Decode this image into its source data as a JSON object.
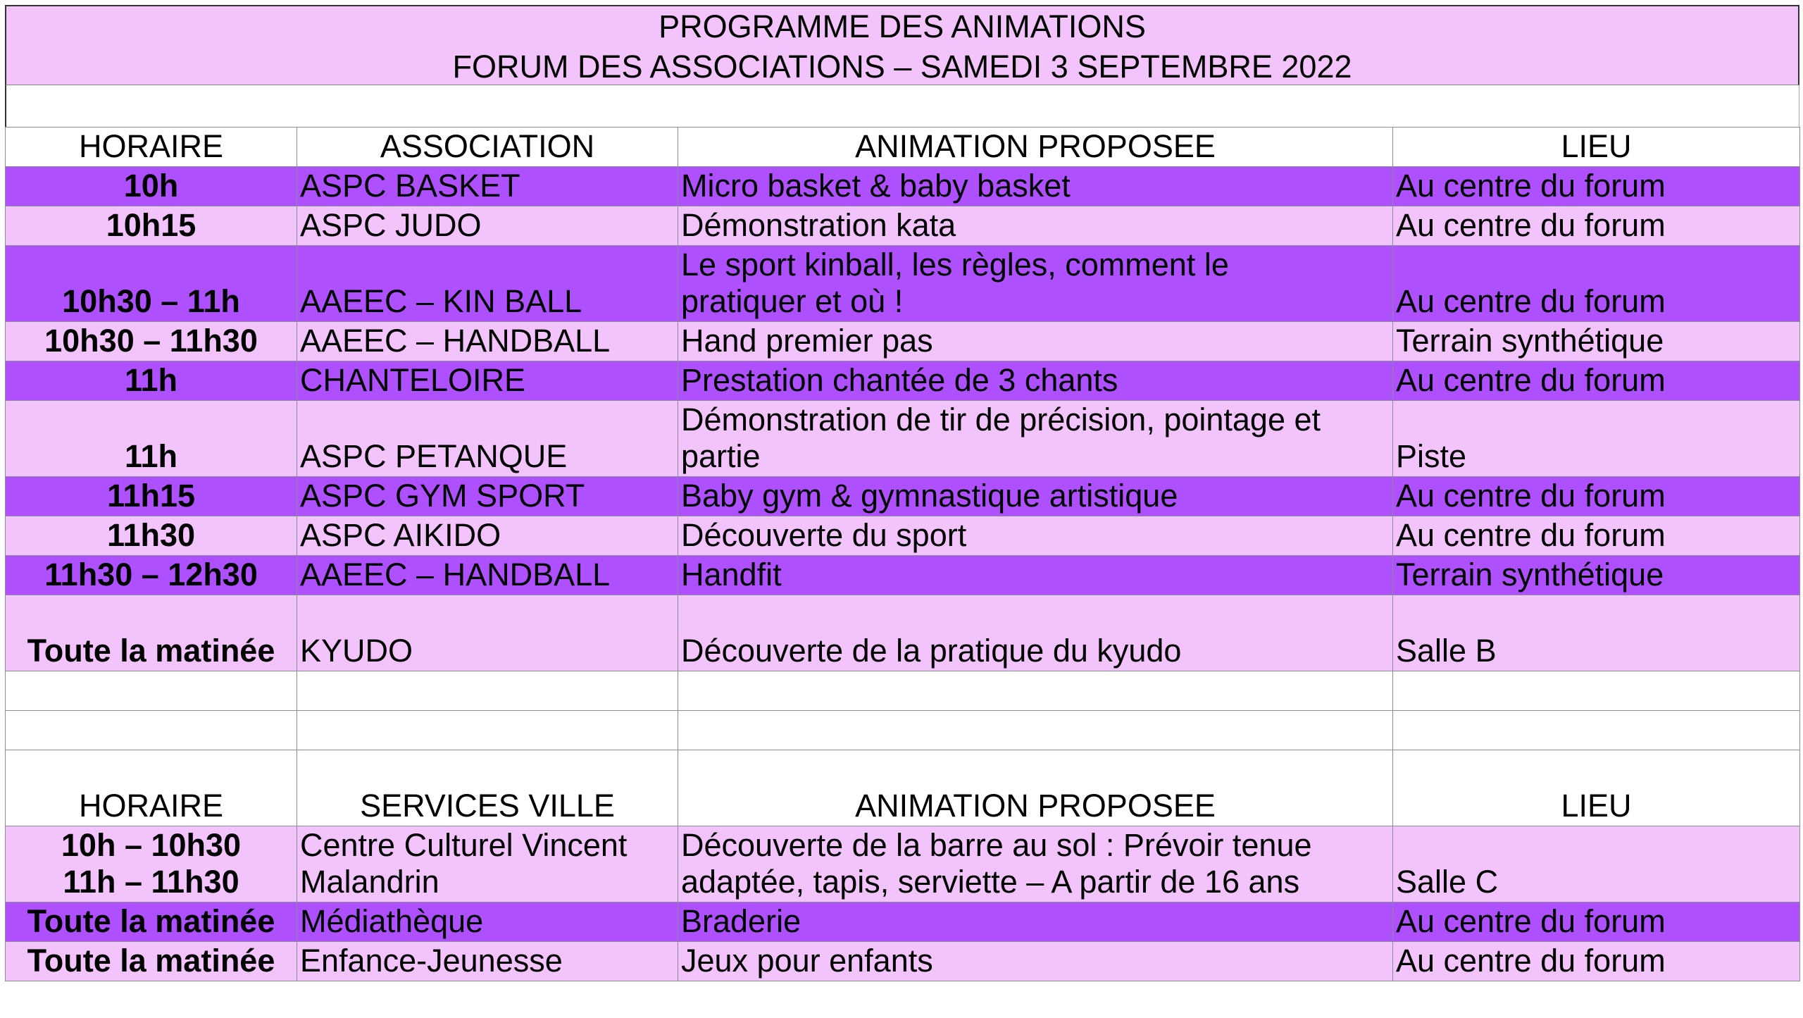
{
  "title": {
    "line1": "PROGRAMME DES ANIMATIONS",
    "line2": "FORUM DES ASSOCIATIONS – SAMEDI 3 SEPTEMBRE 2022"
  },
  "colors": {
    "dark_row": "#af50ff",
    "light_row": "#f3c3fb"
  },
  "associations": {
    "headers": [
      "HORAIRE",
      "ASSOCIATION",
      "ANIMATION PROPOSEE",
      "LIEU"
    ],
    "rows": [
      {
        "style": "dark",
        "lines": 1,
        "cells": [
          "10h",
          "ASPC BASKET",
          "Micro basket & baby basket",
          "Au centre du forum"
        ]
      },
      {
        "style": "light",
        "lines": 1,
        "cells": [
          "10h15",
          "ASPC JUDO",
          "Démonstration kata",
          "Au centre du forum"
        ]
      },
      {
        "style": "dark",
        "lines": 2,
        "cells": [
          "10h30 – 11h",
          "AAEEC – KIN BALL",
          "Le sport kinball, les règles, comment le\npratiquer et où !",
          "Au centre du forum"
        ]
      },
      {
        "style": "light",
        "lines": 1,
        "cells": [
          "10h30 – 11h30",
          "AAEEC – HANDBALL",
          "Hand premier pas",
          "Terrain synthétique"
        ]
      },
      {
        "style": "dark",
        "lines": 1,
        "cells": [
          "11h",
          "CHANTELOIRE",
          "Prestation chantée de 3 chants",
          "Au centre du forum"
        ]
      },
      {
        "style": "light",
        "lines": 2,
        "cells": [
          "11h",
          "ASPC PETANQUE",
          "Démonstration de tir de précision, pointage et\npartie",
          "Piste"
        ]
      },
      {
        "style": "dark",
        "lines": 1,
        "cells": [
          "11h15",
          "ASPC GYM SPORT",
          "Baby gym & gymnastique artistique",
          "Au centre du forum"
        ]
      },
      {
        "style": "light",
        "lines": 1,
        "cells": [
          "11h30",
          "ASPC AIKIDO",
          "Découverte du sport",
          "Au centre du forum"
        ]
      },
      {
        "style": "dark",
        "lines": 1,
        "cells": [
          "11h30 – 12h30",
          "AAEEC – HANDBALL",
          "Handfit",
          "Terrain synthétique"
        ]
      },
      {
        "style": "light",
        "lines": 2,
        "cells": [
          "Toute la matinée",
          "KYUDO",
          "Découverte de la pratique du kyudo",
          "Salle B"
        ]
      }
    ]
  },
  "services": {
    "headers": [
      "HORAIRE",
      "SERVICES VILLE",
      "ANIMATION PROPOSEE",
      "LIEU"
    ],
    "rows": [
      {
        "style": "light",
        "lines": 2,
        "cells": [
          "10h – 10h30\n11h – 11h30",
          "Centre Culturel Vincent\nMalandrin",
          "Découverte de la barre au sol : Prévoir tenue\nadaptée, tapis, serviette – A partir de 16 ans",
          "Salle C"
        ]
      },
      {
        "style": "dark",
        "lines": 1,
        "cells": [
          "Toute la matinée",
          "Médiathèque",
          "Braderie",
          "Au centre du forum"
        ]
      },
      {
        "style": "light",
        "lines": 1,
        "cells": [
          "Toute la matinée",
          "Enfance-Jeunesse",
          "Jeux pour enfants",
          "Au centre du forum"
        ]
      }
    ]
  }
}
